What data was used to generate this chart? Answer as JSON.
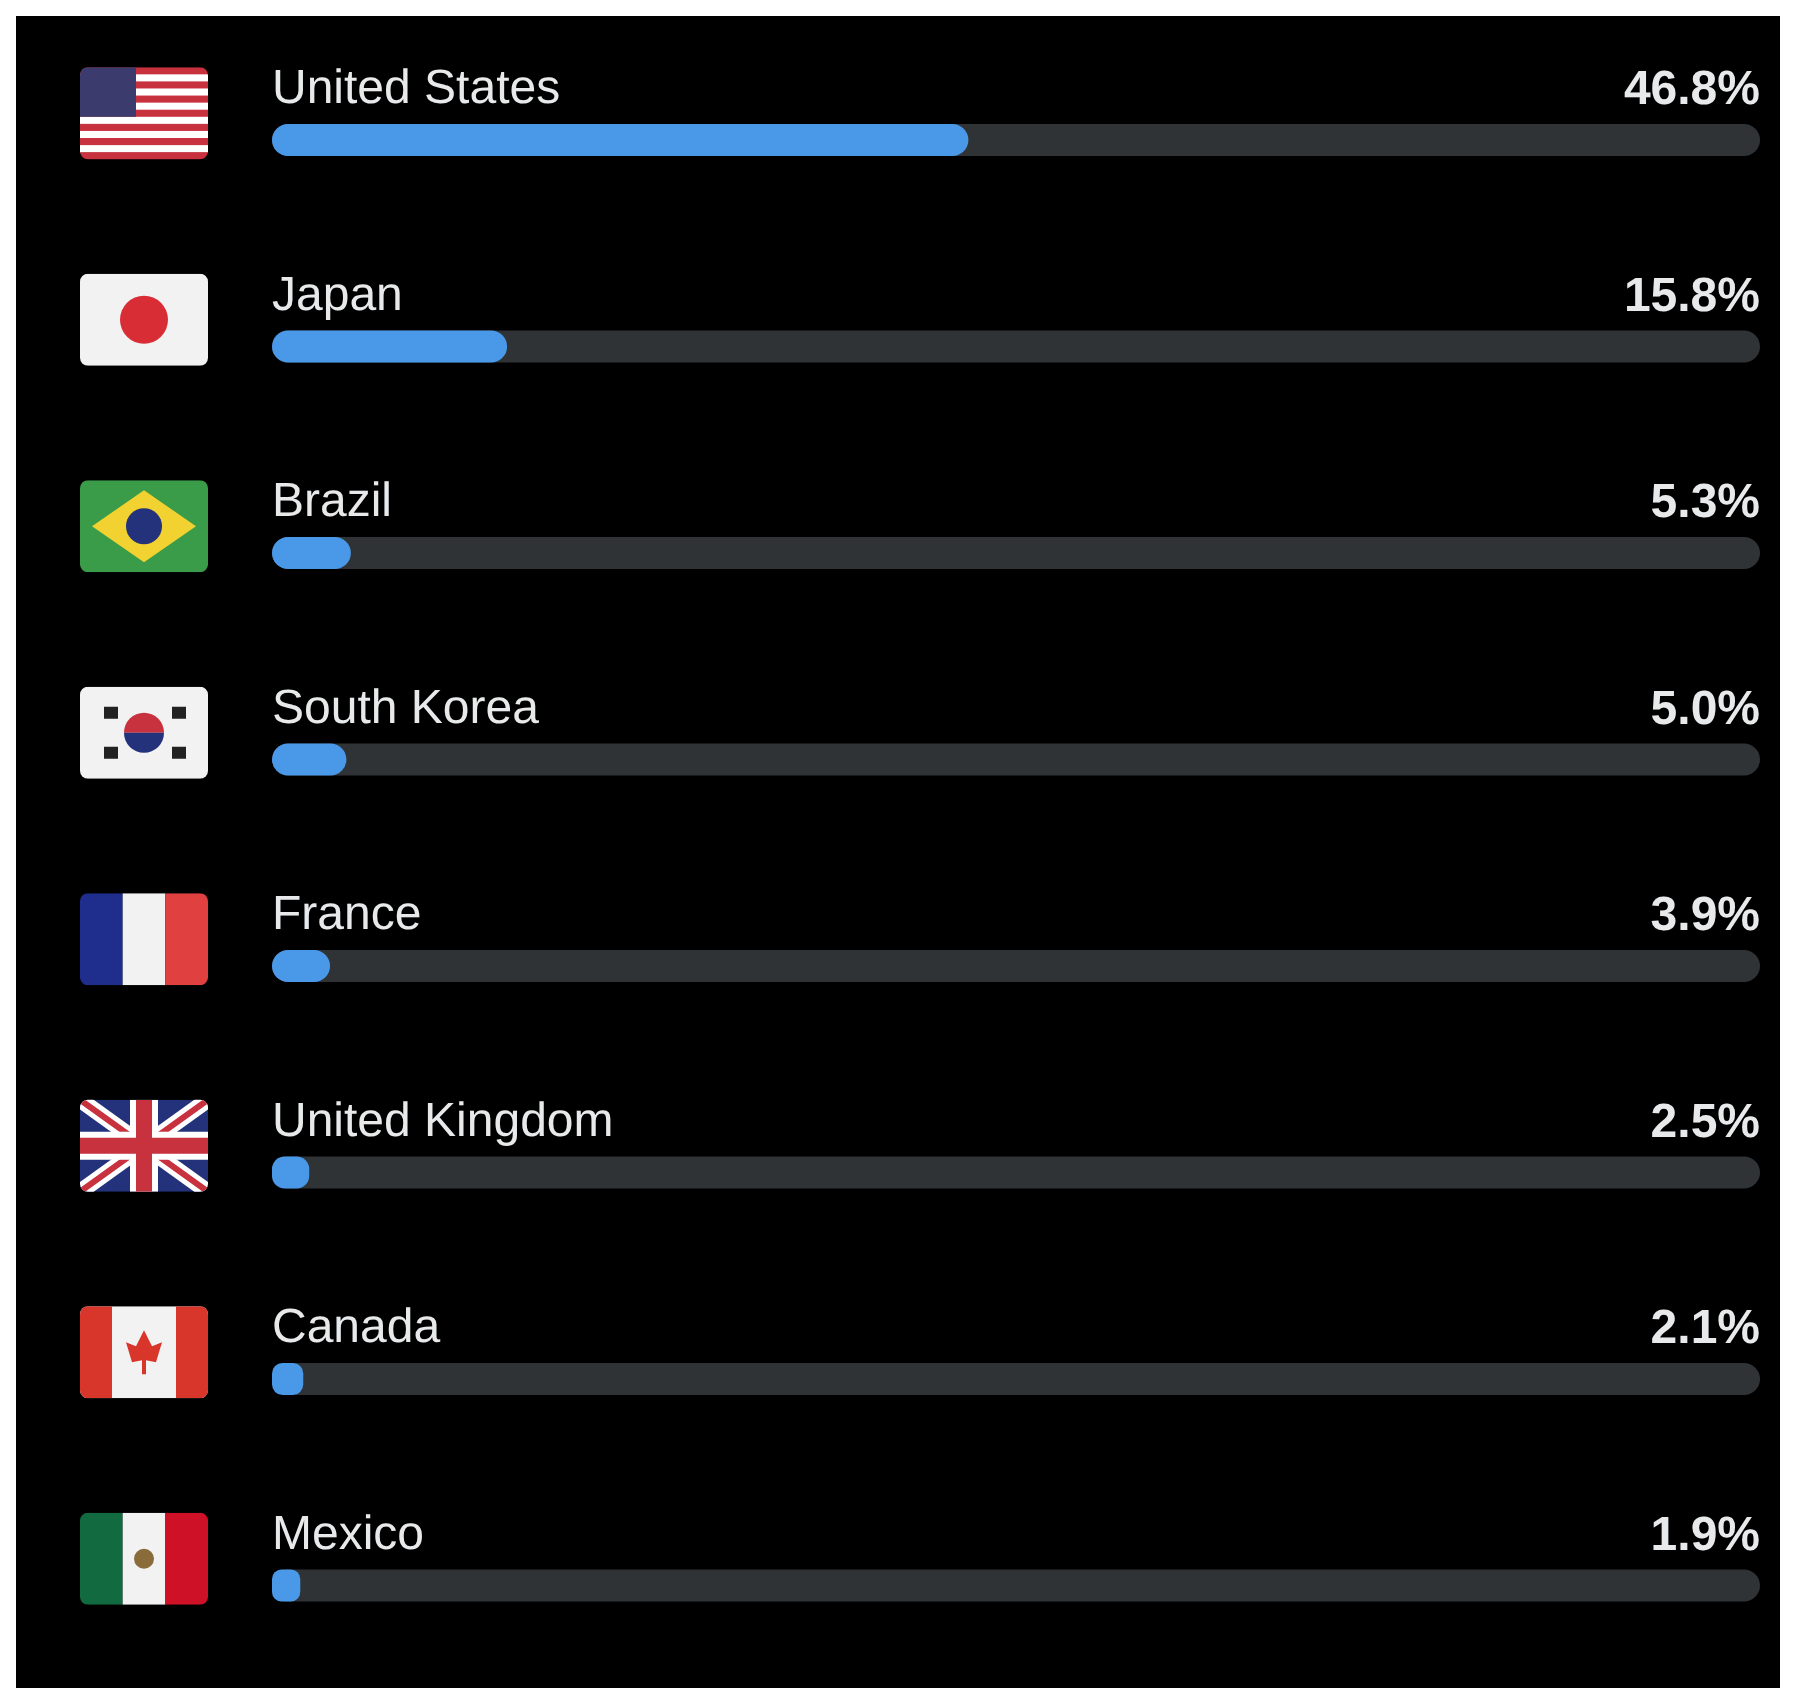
{
  "chart_data": {
    "type": "bar",
    "orientation": "horizontal",
    "categories": [
      "United States",
      "Japan",
      "Brazil",
      "South Korea",
      "France",
      "United Kingdom",
      "Canada",
      "Mexico"
    ],
    "values": [
      46.8,
      15.8,
      5.3,
      5.0,
      3.9,
      2.5,
      2.1,
      1.9
    ],
    "value_labels": [
      "46.8%",
      "15.8%",
      "5.3%",
      "5.0%",
      "3.9%",
      "2.5%",
      "2.1%",
      "1.9%"
    ],
    "color": "#4a99e9",
    "xlim": [
      0,
      100
    ],
    "tick_labels": "y",
    "grid": false,
    "legend": false
  }
}
